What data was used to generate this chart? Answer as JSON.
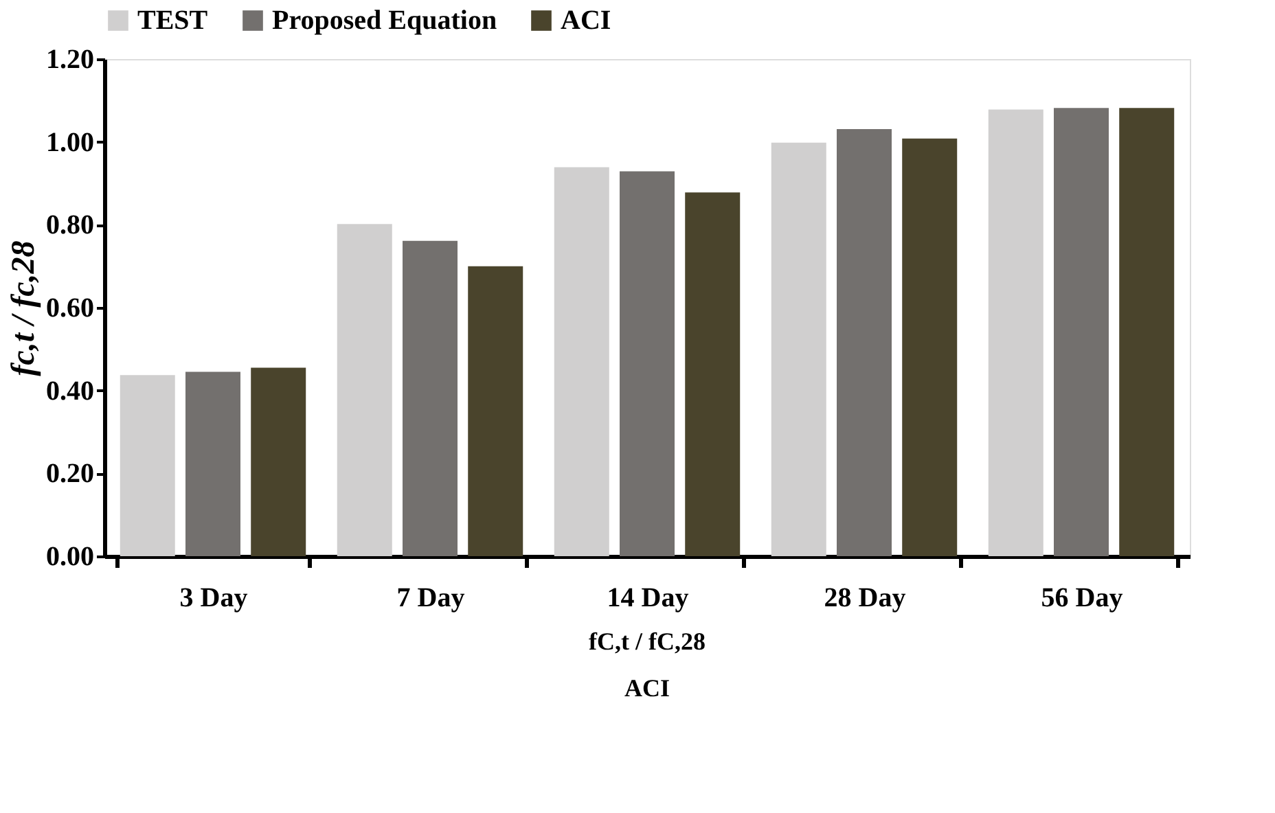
{
  "chart_data": {
    "type": "bar",
    "categories": [
      "3 Day",
      "7 Day",
      "14 Day",
      "28 Day",
      "56 Day"
    ],
    "ylabel": "fc,t / fc,28",
    "series": [
      {
        "name": "TEST",
        "color": "#d0cfcf",
        "values": [
          0.437,
          0.802,
          0.939,
          0.998,
          1.078
        ]
      },
      {
        "name": "Proposed Equation",
        "color": "#73706e",
        "values": [
          0.445,
          0.761,
          0.929,
          1.031,
          1.082
        ]
      },
      {
        "name": "ACI",
        "color": "#4a442c",
        "values": [
          0.455,
          0.7,
          0.878,
          1.008,
          1.082
        ]
      }
    ],
    "ylim": [
      0,
      1.2
    ],
    "yticks": [
      {
        "value": 0,
        "label": "0.00"
      },
      {
        "value": 0.2,
        "label": "0.20"
      },
      {
        "value": 0.4,
        "label": "0.40"
      },
      {
        "value": 0.6,
        "label": "0.60"
      },
      {
        "value": 0.8,
        "label": "0.80"
      },
      {
        "value": 1.0,
        "label": "1.00"
      },
      {
        "value": 1.2,
        "label": "1.20"
      }
    ],
    "grid": false,
    "legend": "top",
    "annotations": [
      "fC,t / fC,28",
      "ACI"
    ]
  }
}
